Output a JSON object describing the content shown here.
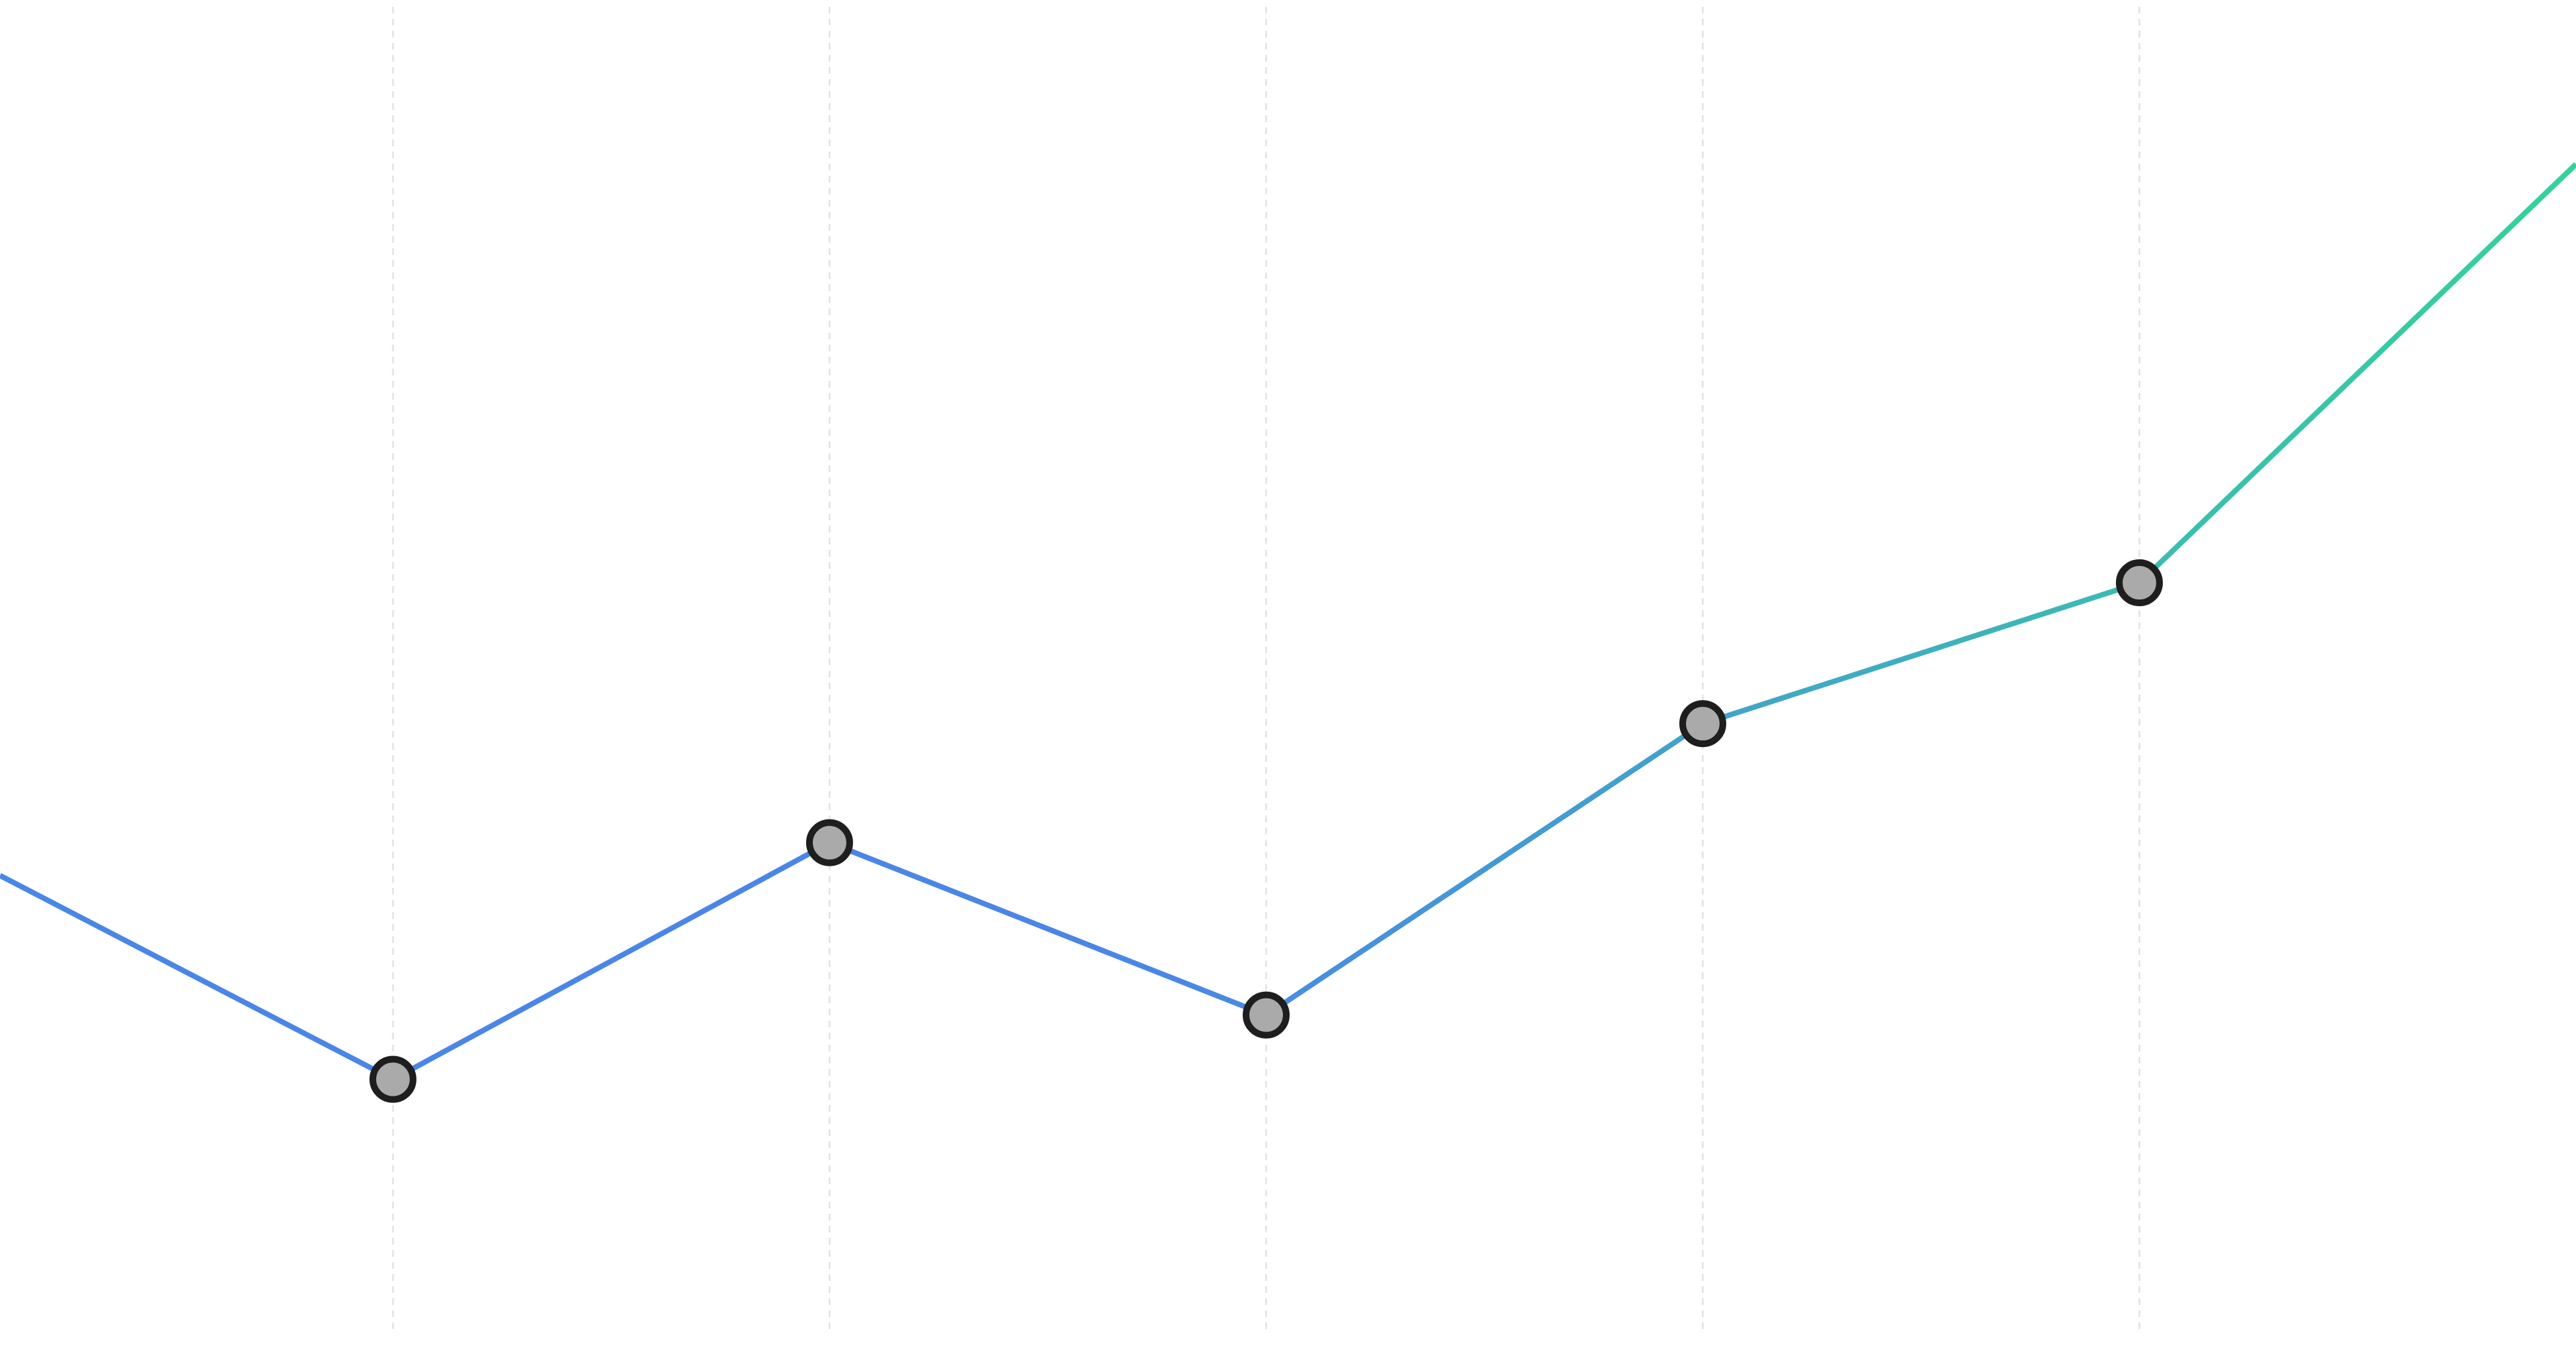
{
  "chart_data": {
    "type": "line",
    "x": [
      0,
      0.9,
      1.9,
      2.9,
      3.9,
      4.9,
      5.9
    ],
    "series": [
      {
        "color": [
          "#4a86e8",
          "#34d399"
        ],
        "values": [
          36,
          21.1,
          38.4,
          25.8,
          47.1,
          57.4,
          88
        ],
        "markers": [
          false,
          true,
          true,
          true,
          true,
          true,
          false
        ]
      }
    ],
    "xlim": [
      0,
      5.9
    ],
    "ylim": [
      0,
      100
    ],
    "xticks": [
      0.9,
      1.9,
      2.9,
      3.9,
      4.9
    ],
    "grid": true
  }
}
